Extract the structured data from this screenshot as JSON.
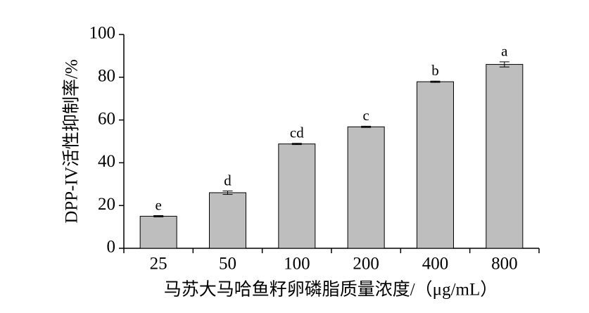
{
  "chart_data": {
    "type": "bar",
    "x_label": "马苏大马哈鱼籽卵磷脂质量浓度/（μg/mL）",
    "y_label": "DPP-IV活性抑制率/%",
    "categories": [
      "25",
      "50",
      "100",
      "200",
      "400",
      "800"
    ],
    "values": [
      15,
      26,
      48.8,
      56.8,
      77.9,
      86
    ],
    "errors": [
      0.3,
      0.8,
      0.3,
      0.3,
      0.3,
      1.2
    ],
    "annotations": [
      "e",
      "d",
      "cd",
      "c",
      "b",
      "a"
    ],
    "color": "#bebebe",
    "ylim": [
      0,
      100
    ],
    "yticks": [
      0,
      20,
      40,
      60,
      80,
      100
    ]
  }
}
